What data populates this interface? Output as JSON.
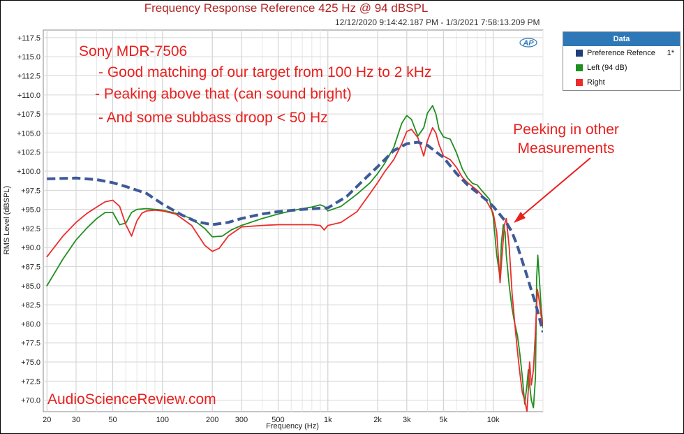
{
  "chart_data": {
    "type": "line",
    "title": "Frequency Response Reference 425 Hz @ 94 dBSPL",
    "subtitle": "12/12/2020 9:14:42.187 PM - 1/3/2021 7:58:13.209 PM",
    "xlabel": "Frequency (Hz)",
    "ylabel": "RMS Level (dBSPL)",
    "xscale": "log",
    "xlim": [
      19,
      20000
    ],
    "ylim": [
      68.5,
      118.5
    ],
    "x_ticks": [
      20,
      30,
      50,
      100,
      200,
      300,
      500,
      1000,
      2000,
      3000,
      5000,
      10000
    ],
    "x_tick_labels": [
      "20",
      "30",
      "50",
      "100",
      "200",
      "300",
      "500",
      "1k",
      "2k",
      "3k",
      "5k",
      "10k"
    ],
    "y_ticks": [
      70,
      72.5,
      75,
      77.5,
      80,
      82.5,
      85,
      87.5,
      90,
      92.5,
      95,
      97.5,
      100,
      102.5,
      105,
      107.5,
      110,
      112.5,
      115,
      117.5
    ],
    "y_tick_labels": [
      "+70.0",
      "+72.5",
      "+75.0",
      "+77.5",
      "+80.0",
      "+82.5",
      "+85.0",
      "+87.5",
      "+90.0",
      "+92.5",
      "+95.0",
      "+97.5",
      "+100.0",
      "+102.5",
      "+105.0",
      "+107.5",
      "+110.0",
      "+112.5",
      "+115.0",
      "+117.5"
    ],
    "grid": true,
    "legend_position": "outside top-right",
    "legend_title": "Data",
    "series": [
      {
        "name": "Preference Refence",
        "flag": "1*",
        "color": "#3d5a98",
        "style": "dashed",
        "x": [
          20,
          30,
          40,
          50,
          60,
          80,
          100,
          130,
          160,
          200,
          250,
          300,
          400,
          500,
          700,
          1000,
          1300,
          1600,
          2000,
          2500,
          3000,
          3500,
          4000,
          5000,
          6000,
          7000,
          8000,
          9000,
          10000,
          11000,
          12000,
          13000,
          14000,
          15000,
          16000,
          17000,
          18000,
          19000,
          20000
        ],
        "y": [
          99.0,
          99.1,
          98.9,
          98.5,
          98.0,
          97.1,
          95.7,
          94.3,
          93.4,
          93.0,
          93.3,
          93.8,
          94.4,
          94.7,
          95.0,
          95.2,
          96.7,
          98.6,
          100.6,
          102.7,
          103.6,
          103.8,
          103.4,
          101.8,
          99.7,
          98.2,
          97.2,
          96.3,
          95.4,
          94.3,
          93.3,
          92.0,
          90.2,
          88.2,
          86.3,
          84.4,
          82.7,
          80.8,
          78.9
        ]
      },
      {
        "name": "Left (94 dB)",
        "color": "#1f8f1f",
        "style": "solid",
        "x": [
          20,
          25,
          30,
          35,
          40,
          45,
          50,
          55,
          60,
          65,
          70,
          80,
          90,
          100,
          120,
          150,
          180,
          200,
          230,
          260,
          300,
          400,
          500,
          600,
          700,
          800,
          900,
          950,
          1000,
          1200,
          1500,
          1800,
          2000,
          2200,
          2500,
          2800,
          3000,
          3200,
          3500,
          3800,
          4000,
          4300,
          4500,
          4700,
          5000,
          5500,
          6000,
          6500,
          7000,
          7500,
          8000,
          8500,
          9000,
          9500,
          10000,
          10500,
          11000,
          11200,
          11500,
          11800,
          12000,
          12500,
          13000,
          13500,
          14000,
          14500,
          15000,
          15500,
          16000,
          16300,
          16600,
          17000,
          17500,
          18000,
          18300,
          18600,
          19000,
          19500,
          20000
        ],
        "y": [
          85.0,
          88.5,
          91.0,
          92.6,
          93.8,
          94.6,
          94.6,
          93.0,
          93.2,
          94.6,
          95.0,
          95.1,
          95.0,
          94.9,
          94.5,
          93.8,
          92.5,
          91.4,
          91.5,
          92.3,
          92.9,
          93.8,
          94.4,
          94.8,
          95.1,
          95.3,
          95.6,
          95.4,
          94.8,
          95.4,
          97.0,
          98.5,
          99.7,
          101.0,
          103.1,
          106.3,
          107.3,
          106.8,
          104.6,
          105.7,
          107.6,
          108.6,
          107.5,
          105.5,
          104.5,
          104.2,
          102.4,
          100.3,
          99.1,
          98.4,
          98.2,
          97.5,
          96.9,
          96.3,
          94.0,
          89.0,
          86.0,
          90.5,
          93.0,
          92.0,
          89.0,
          85.0,
          82.0,
          80.0,
          78.5,
          76.0,
          73.0,
          69.5,
          72.0,
          74.0,
          72.0,
          70.0,
          69.0,
          73.0,
          86.0,
          89.0,
          86.0,
          82.0,
          79.5
        ]
      },
      {
        "name": "Right",
        "color": "#ee2b2b",
        "style": "solid",
        "x": [
          20,
          25,
          30,
          35,
          40,
          45,
          50,
          55,
          60,
          65,
          70,
          75,
          80,
          90,
          100,
          120,
          150,
          180,
          200,
          220,
          250,
          300,
          400,
          500,
          700,
          800,
          900,
          950,
          1000,
          1200,
          1500,
          1800,
          2000,
          2200,
          2500,
          2800,
          3000,
          3200,
          3500,
          3800,
          4000,
          4300,
          4500,
          4700,
          5000,
          5500,
          6000,
          6500,
          7000,
          7500,
          8000,
          8500,
          9000,
          9500,
          10000,
          10500,
          10800,
          11000,
          11300,
          11700,
          12000,
          12500,
          13000,
          13500,
          14000,
          14500,
          15000,
          15500,
          16000,
          16300,
          16600,
          17000,
          17500,
          18000,
          18500,
          19000,
          19500,
          20000
        ],
        "y": [
          88.8,
          91.5,
          93.3,
          94.5,
          95.3,
          96.0,
          96.2,
          95.4,
          93.0,
          91.5,
          93.5,
          94.5,
          94.8,
          94.9,
          94.8,
          94.4,
          92.9,
          90.3,
          89.5,
          89.9,
          91.5,
          92.7,
          92.9,
          93.0,
          93.0,
          93.0,
          92.9,
          92.3,
          92.9,
          93.3,
          94.7,
          97.1,
          98.5,
          99.9,
          101.5,
          103.6,
          105.2,
          105.5,
          104.4,
          102.0,
          104.0,
          105.7,
          105.0,
          103.5,
          102.0,
          101.5,
          100.5,
          99.2,
          98.5,
          98.0,
          97.5,
          96.9,
          96.3,
          95.4,
          94.5,
          92.0,
          88.0,
          85.4,
          89.0,
          93.0,
          93.8,
          90.0,
          84.0,
          80.0,
          76.5,
          73.5,
          71.0,
          70.0,
          68.5,
          71.5,
          75.0,
          72.0,
          74.0,
          79.0,
          84.5,
          83.0,
          81.0,
          79.9
        ]
      }
    ],
    "annotations": [
      "Sony MDR-7506",
      "- Good matching of our target from 100 Hz to 2 kHz",
      "- Peaking above that (can sound bright)",
      "- And some subbass droop < 50 Hz",
      "Peeking in other",
      "Measurements",
      "AudioScienceReview.com"
    ],
    "ap_logo": "AP"
  }
}
